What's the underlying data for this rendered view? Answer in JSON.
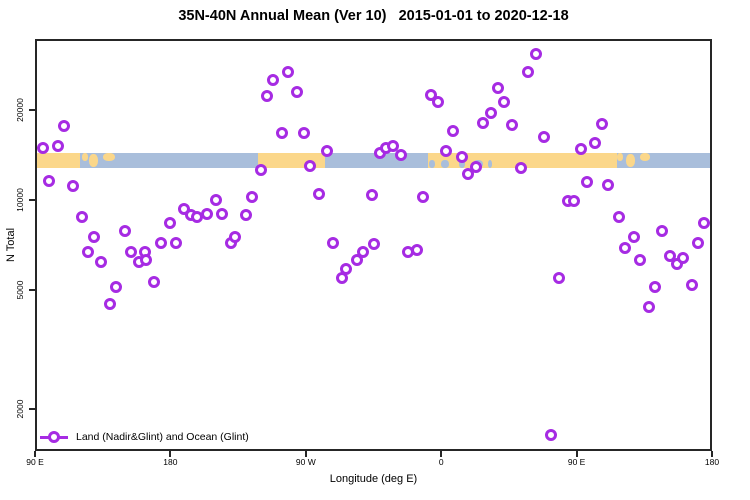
{
  "chart_data": {
    "type": "scatter",
    "title": "35N-40N Annual Mean (Ver 10)   2015-01-01 to 2020-12-18",
    "xlabel": "Longitude (deg E)",
    "ylabel": "N Total",
    "x_axis": {
      "lim": [
        90,
        540
      ],
      "unit": "deg E",
      "ticks": [
        {
          "v": 90,
          "label": "90 E"
        },
        {
          "v": 180,
          "label": "180"
        },
        {
          "v": 270,
          "label": "90 W"
        },
        {
          "v": 360,
          "label": "0"
        },
        {
          "v": 450,
          "label": "90 E"
        },
        {
          "v": 540,
          "label": "180"
        }
      ]
    },
    "y_axis": {
      "scale": "log",
      "lim": [
        1400,
        34000
      ],
      "ticks": [
        {
          "v": 2000,
          "label": "2000"
        },
        {
          "v": 5000,
          "label": "5000"
        },
        {
          "v": 10000,
          "label": "10000"
        },
        {
          "v": 20000,
          "label": "20000"
        }
      ]
    },
    "legend": {
      "label": "Land (Nadir&Glint) and Ocean (Glint)",
      "marker": "open-circle-on-line"
    },
    "series": [
      {
        "name": "Land (Nadir&Glint) and Ocean (Glint)",
        "marker": "open-circle",
        "color": "#A62BE3",
        "points": [
          [
            95,
            14900
          ],
          [
            99,
            11600
          ],
          [
            105,
            15200
          ],
          [
            109,
            17700
          ],
          [
            115,
            11100
          ],
          [
            121,
            8800
          ],
          [
            125,
            6700
          ],
          [
            129,
            7500
          ],
          [
            134,
            6200
          ],
          [
            140,
            4500
          ],
          [
            144,
            5100
          ],
          [
            150,
            7900
          ],
          [
            154,
            6700
          ],
          [
            159,
            6200
          ],
          [
            163,
            6700
          ],
          [
            164,
            6300
          ],
          [
            169,
            5300
          ],
          [
            174,
            7200
          ],
          [
            180,
            8400
          ],
          [
            184,
            7200
          ],
          [
            189,
            9300
          ],
          [
            194,
            8900
          ],
          [
            198,
            8800
          ],
          [
            204,
            9000
          ],
          [
            210,
            10000
          ],
          [
            214,
            9000
          ],
          [
            220,
            7200
          ],
          [
            223,
            7500
          ],
          [
            230,
            8900
          ],
          [
            234,
            10200
          ],
          [
            240,
            12600
          ],
          [
            244,
            22300
          ],
          [
            248,
            25200
          ],
          [
            254,
            16800
          ],
          [
            258,
            26800
          ],
          [
            264,
            23000
          ],
          [
            269,
            16800
          ],
          [
            273,
            13000
          ],
          [
            279,
            10500
          ],
          [
            284,
            14600
          ],
          [
            288,
            7200
          ],
          [
            294,
            5500
          ],
          [
            297,
            5900
          ],
          [
            304,
            6300
          ],
          [
            308,
            6700
          ],
          [
            314,
            10400
          ],
          [
            315,
            7100
          ],
          [
            319,
            14400
          ],
          [
            323,
            14900
          ],
          [
            328,
            15200
          ],
          [
            333,
            14100
          ],
          [
            338,
            6700
          ],
          [
            344,
            6800
          ],
          [
            348,
            10200
          ],
          [
            353,
            22400
          ],
          [
            358,
            21300
          ],
          [
            363,
            14600
          ],
          [
            368,
            17000
          ],
          [
            374,
            13900
          ],
          [
            378,
            12200
          ],
          [
            383,
            12900
          ],
          [
            388,
            18100
          ],
          [
            393,
            19500
          ],
          [
            398,
            23700
          ],
          [
            402,
            21300
          ],
          [
            407,
            17800
          ],
          [
            413,
            12800
          ],
          [
            418,
            26800
          ],
          [
            423,
            30800
          ],
          [
            428,
            16200
          ],
          [
            433,
            1640
          ],
          [
            438,
            5500
          ],
          [
            444,
            9900
          ],
          [
            448,
            9900
          ],
          [
            453,
            14800
          ],
          [
            457,
            11500
          ],
          [
            462,
            15500
          ],
          [
            467,
            17900
          ],
          [
            471,
            11200
          ],
          [
            478,
            8800
          ],
          [
            482,
            6900
          ],
          [
            488,
            7500
          ],
          [
            492,
            6300
          ],
          [
            498,
            4400
          ],
          [
            502,
            5100
          ],
          [
            507,
            7900
          ],
          [
            512,
            6500
          ],
          [
            517,
            6100
          ],
          [
            521,
            6400
          ],
          [
            527,
            5200
          ],
          [
            531,
            7200
          ],
          [
            535,
            8400
          ]
        ]
      }
    ],
    "map_strip": {
      "description": "35N-40N latitude band land/ocean map strip",
      "value_band": [
        12900,
        14500
      ],
      "colors": {
        "land": "#FBD78A",
        "ocean": "#A9BEDB"
      },
      "segments": [
        {
          "from": 90,
          "to": 120,
          "surface": "land"
        },
        {
          "from": 120,
          "to": 145,
          "surface": "ocean"
        },
        {
          "from": 145,
          "to": 238,
          "surface": "ocean"
        },
        {
          "from": 238,
          "to": 283,
          "surface": "land"
        },
        {
          "from": 283,
          "to": 351,
          "surface": "ocean"
        },
        {
          "from": 351,
          "to": 369,
          "surface": "land"
        },
        {
          "from": 369,
          "to": 477,
          "surface": "land"
        },
        {
          "from": 477,
          "to": 500,
          "surface": "ocean"
        },
        {
          "from": 500,
          "to": 540,
          "surface": "ocean"
        }
      ],
      "patches": [
        {
          "from": 121,
          "to": 125,
          "pos": "top",
          "surface": "land"
        },
        {
          "from": 126,
          "to": 132,
          "pos": "full",
          "surface": "land"
        },
        {
          "from": 135,
          "to": 143,
          "pos": "top",
          "surface": "land"
        },
        {
          "from": 352,
          "to": 356,
          "pos": "bottom",
          "surface": "ocean"
        },
        {
          "from": 360,
          "to": 365,
          "pos": "bottom",
          "surface": "ocean"
        },
        {
          "from": 372,
          "to": 376,
          "pos": "bottom",
          "surface": "ocean"
        },
        {
          "from": 381,
          "to": 388,
          "pos": "bottom",
          "surface": "ocean"
        },
        {
          "from": 391,
          "to": 394,
          "pos": "bottom",
          "surface": "ocean"
        },
        {
          "from": 477,
          "to": 481,
          "pos": "top",
          "surface": "land"
        },
        {
          "from": 483,
          "to": 489,
          "pos": "full",
          "surface": "land"
        },
        {
          "from": 492,
          "to": 499,
          "pos": "top",
          "surface": "land"
        }
      ]
    }
  }
}
